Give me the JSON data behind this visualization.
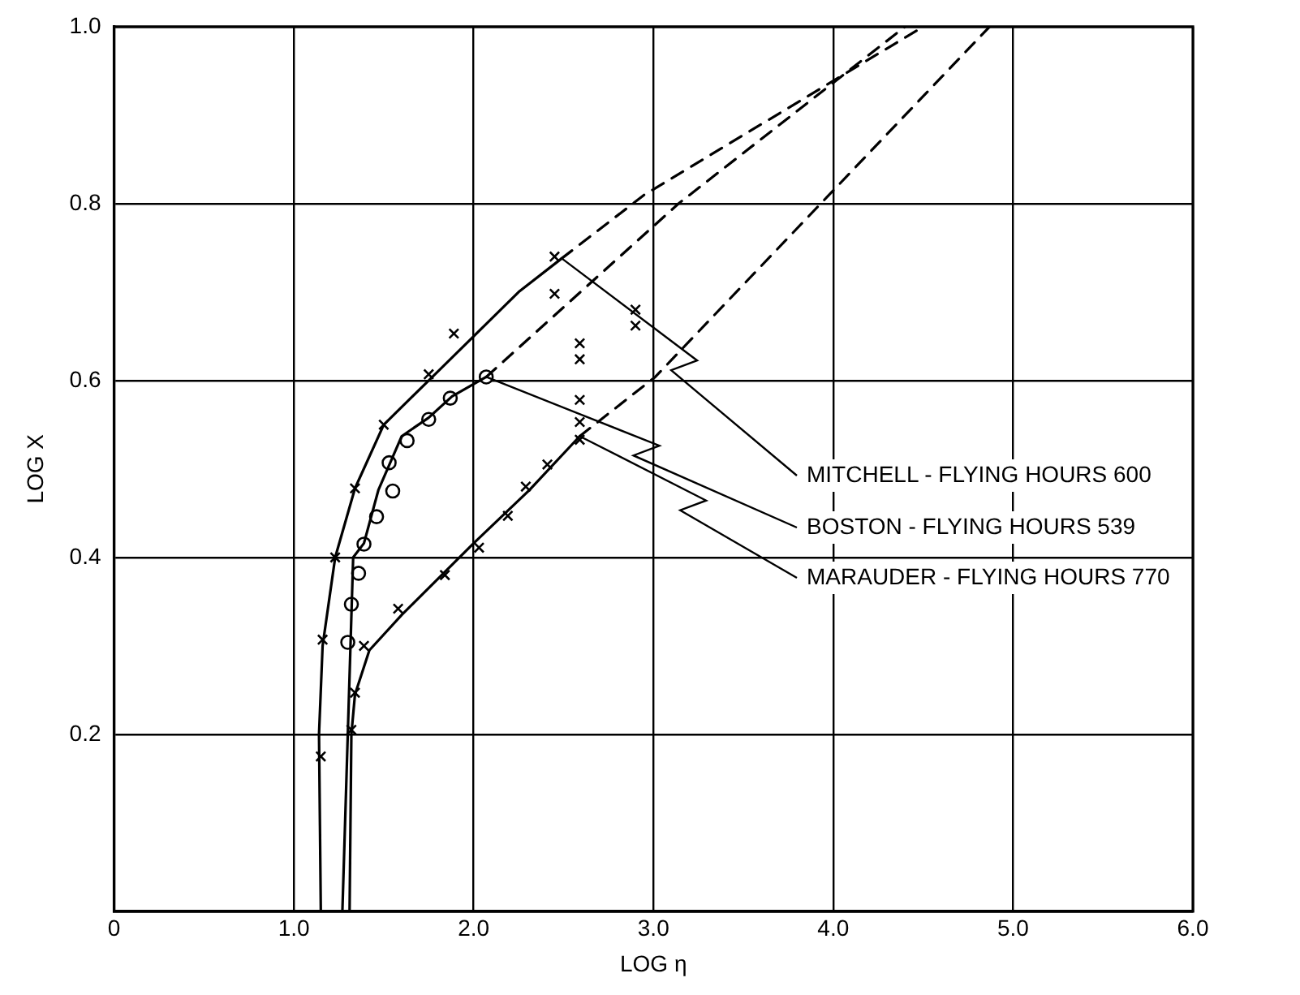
{
  "chart_data": {
    "type": "line",
    "xlabel": "LOG η",
    "ylabel": "LOG X",
    "xlim": [
      0,
      6
    ],
    "ylim": [
      0,
      1
    ],
    "xticks": [
      0,
      {
        "value": 1,
        "label": "1.0"
      },
      {
        "value": 2,
        "label": "2.0"
      },
      {
        "value": 3,
        "label": "3.0"
      },
      {
        "value": 4,
        "label": "4.0"
      },
      {
        "value": 5,
        "label": "5.0"
      },
      {
        "value": 6,
        "label": "6.0"
      }
    ],
    "yticks": [
      {
        "value": 0,
        "label": null
      },
      {
        "value": 0.2,
        "label": "0.2"
      },
      {
        "value": 0.4,
        "label": "0.4"
      },
      {
        "value": 0.6,
        "label": "0.6"
      },
      {
        "value": 0.8,
        "label": "0.8"
      },
      {
        "value": 1,
        "label": "1.0"
      }
    ],
    "grid": true,
    "legend": false,
    "series": [
      {
        "name": "MITCHELL - FLYING HOURS 600",
        "type": "line",
        "color": "#000000",
        "marker": "none",
        "line_style": "solid",
        "x": [
          1.15,
          1.14,
          1.16,
          1.23,
          1.34,
          1.5,
          1.75,
          2.0,
          2.25,
          2.49
        ],
        "values": [
          0,
          0.2,
          0.3,
          0.4,
          0.478,
          0.55,
          0.6,
          0.65,
          0.7,
          0.738
        ]
      },
      {
        "type": "line",
        "color": "#000000",
        "marker": "none",
        "line_style": "dashed",
        "x": [
          2.49,
          2.95,
          4.5
        ],
        "values": [
          0.738,
          0.81,
          1
        ]
      },
      {
        "type": "scatter",
        "color": "#000000",
        "marker": "cross",
        "x": [
          1.15,
          1.16,
          1.23,
          1.34,
          1.5,
          1.75,
          1.89,
          2.45,
          2.45
        ],
        "values": [
          0.175,
          0.307,
          0.4,
          0.478,
          0.55,
          0.607,
          0.653,
          0.698,
          0.74
        ]
      },
      {
        "name": "BOSTON - FLYING HOURS 539",
        "type": "line",
        "color": "#000000",
        "marker": "none",
        "line_style": "solid",
        "x": [
          1.27,
          1.3,
          1.33,
          1.39,
          1.47,
          1.6,
          1.75,
          1.88,
          2.07
        ],
        "values": [
          0,
          0.2,
          0.4,
          0.416,
          0.476,
          0.537,
          0.558,
          0.582,
          0.604
        ]
      },
      {
        "type": "line",
        "color": "#000000",
        "marker": "none",
        "line_style": "dashed",
        "x": [
          2.07,
          3.14,
          4.4
        ],
        "values": [
          0.604,
          0.8,
          1
        ]
      },
      {
        "type": "scatter",
        "color": "#000000",
        "marker": "circle",
        "x": [
          1.3,
          1.32,
          1.36,
          1.39,
          1.46,
          1.55,
          1.53,
          1.63,
          1.75,
          1.87,
          2.07
        ],
        "values": [
          0.304,
          0.347,
          0.382,
          0.415,
          0.446,
          0.475,
          0.507,
          0.532,
          0.556,
          0.58,
          0.604
        ]
      },
      {
        "name": "MARAUDER - FLYING HOURS 770",
        "type": "line",
        "color": "#000000",
        "marker": "none",
        "line_style": "solid",
        "x": [
          1.31,
          1.32,
          1.34,
          1.42,
          1.6,
          2.0,
          2.31,
          2.59
        ],
        "values": [
          0,
          0.2,
          0.245,
          0.295,
          0.335,
          0.416,
          0.476,
          0.537
        ]
      },
      {
        "type": "line",
        "color": "#000000",
        "marker": "none",
        "line_style": "dashed",
        "x": [
          2.59,
          3.01,
          4.87
        ],
        "values": [
          0.537,
          0.604,
          1
        ]
      },
      {
        "type": "scatter",
        "color": "#000000",
        "marker": "cross",
        "x": [
          1.32,
          1.34,
          1.39,
          1.58,
          1.84,
          2.03,
          2.19,
          2.29,
          2.41,
          2.59,
          2.59,
          2.59,
          2.59,
          2.59,
          2.9,
          2.9
        ],
        "values": [
          0.205,
          0.247,
          0.3,
          0.342,
          0.38,
          0.411,
          0.447,
          0.48,
          0.505,
          0.533,
          0.553,
          0.578,
          0.624,
          0.642,
          0.662,
          0.68
        ]
      }
    ]
  }
}
